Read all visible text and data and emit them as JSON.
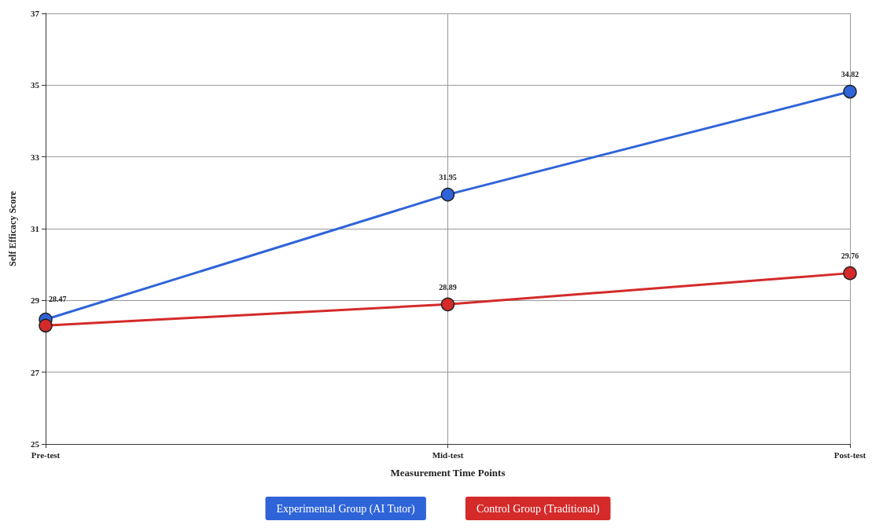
{
  "chart_data": {
    "type": "line",
    "xlabel": "Measurement Time Points",
    "ylabel": "Self Efficacy Score",
    "categories": [
      "Pre-test",
      "Mid-test",
      "Post-test"
    ],
    "series": [
      {
        "name": "Experimental Group (AI Tutor)",
        "color": "#2f64d9",
        "values": [
          28.47,
          31.95,
          34.82
        ],
        "value_labels": [
          "28.47",
          "31.95",
          "34.82"
        ]
      },
      {
        "name": "Control Group (Traditional)",
        "color": "#d42a2a",
        "values": [
          28.3,
          28.89,
          29.76
        ],
        "value_labels": [
          null,
          "28.89",
          "29.76"
        ]
      }
    ],
    "ylim": [
      25,
      37
    ],
    "yticks": [
      25,
      27,
      29,
      31,
      33,
      35,
      37
    ],
    "grid": true,
    "legend": "bottom",
    "marker": "circle",
    "line_style": "solid"
  }
}
